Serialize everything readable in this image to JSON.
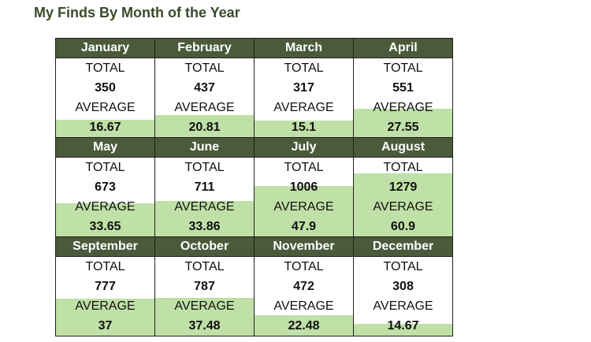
{
  "page": {
    "title": "My Finds By Month of the Year"
  },
  "labels": {
    "total": "TOTAL",
    "average": "AVERAGE"
  },
  "colors": {
    "header_bg": "#4a5a3a",
    "fill": "#bfe0a6",
    "title": "#3a4a2a"
  },
  "months": [
    {
      "name": "January",
      "total": "350",
      "average": "16.67",
      "fill_fraction": 0.22
    },
    {
      "name": "February",
      "total": "437",
      "average": "20.81",
      "fill_fraction": 0.28
    },
    {
      "name": "March",
      "total": "317",
      "average": "15.1",
      "fill_fraction": 0.21
    },
    {
      "name": "April",
      "total": "551",
      "average": "27.55",
      "fill_fraction": 0.36
    },
    {
      "name": "May",
      "total": "673",
      "average": "33.65",
      "fill_fraction": 0.42
    },
    {
      "name": "June",
      "total": "711",
      "average": "33.86",
      "fill_fraction": 0.45
    },
    {
      "name": "July",
      "total": "1006",
      "average": "47.9",
      "fill_fraction": 0.64
    },
    {
      "name": "August",
      "total": "1279",
      "average": "60.9",
      "fill_fraction": 0.8
    },
    {
      "name": "September",
      "total": "777",
      "average": "37",
      "fill_fraction": 0.47
    },
    {
      "name": "October",
      "total": "787",
      "average": "37.48",
      "fill_fraction": 0.48
    },
    {
      "name": "November",
      "total": "472",
      "average": "22.48",
      "fill_fraction": 0.26
    },
    {
      "name": "December",
      "total": "308",
      "average": "14.67",
      "fill_fraction": 0.15
    }
  ]
}
